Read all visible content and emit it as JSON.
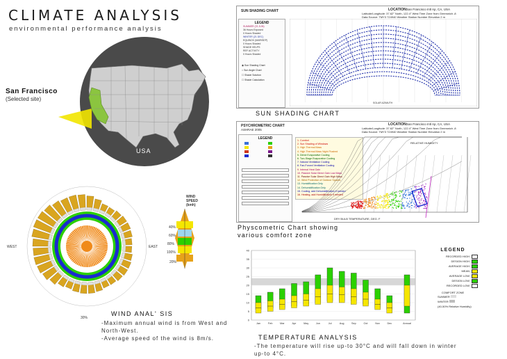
{
  "header": {
    "title": "CLIMATE ANALYSIS",
    "subtitle": "environmental performance analysis"
  },
  "map": {
    "location_label": "San Francisco",
    "location_sub": "(Selected site)",
    "country_label": "USA",
    "colors": {
      "circle": "#4a4a4a",
      "highlight": "#8bc53f",
      "beam": "#f2e500"
    }
  },
  "wind": {
    "title": "WIND ANAL' SIS",
    "west_label": "WEST",
    "east_label": "EAST",
    "south_label": "30%",
    "notes": [
      "-Maximum annual wind is from West and",
      "North-West.",
      "-Average speed of the wind is 8m/s."
    ],
    "legend": {
      "title": "WIND SPEED (kmh)",
      "percents": [
        "40%",
        "60%",
        "80%",
        "100%",
        "20%"
      ],
      "bottom": "20%"
    }
  },
  "sun_shading": {
    "caption": "SUN SHADING CHART",
    "panel_title": "SUN SHADING CHART",
    "location_label": "LOCATION:",
    "location_value": "San Francisco Intl Ap, CA, USA",
    "latlong": "Latitude/Longitude:   37.62° North, 122.4° West  Time Zone from Greenwich -8",
    "data_source": "Data Source:   TMY3   724940 Weather Station Number   Elevation 2 m",
    "legend_title": "LEGEND",
    "legend_items": [
      "SUMMER (21 JUN)",
      "36 Hours Exposed",
      "0 Hours Shaded",
      "WINTER (21 DEC)",
      "EQUINOX (MAR/SEP)",
      "0 Hours Shaded",
      "SHADE HELPS",
      "REF ACTIVITY",
      "0 Hours Shaded"
    ],
    "options": [
      "Sun Shading Chart",
      "Sun Angle Chart",
      "Shade Solution",
      "Shade Calculation"
    ],
    "axis_bottom": "SOLAR AZIMUTH"
  },
  "psychrometric": {
    "caption_line1": "Physcometric Chart showing",
    "caption_line2": "various comfort zone",
    "panel_title": "PSYCHROMETRIC CHART",
    "panel_sub": "ASHRAE 2005",
    "location_label": "LOCATION:",
    "location_value": "San Francisco Intl Ap, CA, USA",
    "latlong": "Latitude/Longitude:  37.62° North, 122.4° West  Time Zone from Greenwich -8",
    "data_source": "Data Source:  TMY3  724940 Weather Station Number  Elevation 2 m",
    "legend_title": "LEGEND",
    "design_strategies": [
      "1. Comfort",
      "2. Sun Shading of Windows",
      "3. High Thermal Mass",
      "4. High Thermal Mass Night Flushed",
      "5. Direct Evaporative Cooling",
      "6. Two-Stage Evaporative Cooling",
      "7. Natural Ventilation Cooling",
      "8. Fan-Forced Ventilation Cooling",
      "9. Internal Heat Gain",
      "10. Passive Solar Direct Gain Low Mass",
      "11. Passive Solar Direct Gain High Mass",
      "12. Wind Protection of Outdoor Spaces",
      "13. Humidification Only",
      "14. Dehumidification Only",
      "15. Cooling, add Dehumidification if needed",
      "16. Heating, add Humidification if needed"
    ],
    "x_axis": "DRY BULB TEMPERATURE, DEG. F",
    "y_axis": "HUMIDITY RATIO",
    "rh_label": "RELATIVE HUMIDITY"
  },
  "temperature": {
    "caption": "TEMPERATURE ANALYSIS",
    "notes": [
      "-The temperature will rise up-to 30°C and will fall down in winter",
      "up-to 4°C."
    ],
    "legend_title": "LEGEND",
    "legend_items": [
      "RECORDED HIGH",
      "DESIGN HIGH",
      "AVERAGE HIGH",
      "MEAN",
      "AVERAGE LOW",
      "DESIGN LOW",
      "RECORDED LOW"
    ],
    "comfort_title": "COMFORT ZONE",
    "comfort_items": [
      "SUMMER",
      "WINTER",
      "(40-50% Relative Humidity)"
    ],
    "annual_label": "Annual",
    "months": [
      "Jan",
      "Feb",
      "Mar",
      "Apr",
      "May",
      "Jun",
      "Jul",
      "Aug",
      "Sep",
      "Oct",
      "Nov",
      "Dec"
    ],
    "y_ticks": [
      "40",
      "35",
      "30",
      "25",
      "20",
      "15",
      "10",
      "5",
      "0"
    ],
    "colors": {
      "green": "#2bd000",
      "yellow": "#f5e600",
      "band": "#bdbdbd"
    }
  }
}
